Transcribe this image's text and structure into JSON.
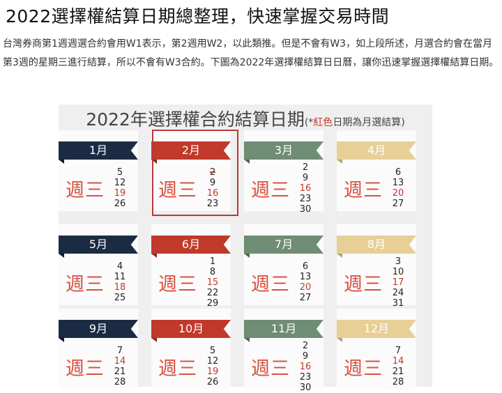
{
  "article": {
    "title": "2022選擇權結算日期總整理，快速掌握交易時間",
    "intro": "台灣券商第1週週選合約會用W1表示，第2週用W2，以此類推。但是不會有W3，如上段所述，月選合約會在當月第3週的星期三進行結算，所以不會有W3合約。下圖為2022年選擇權結算日日曆，讓你迅速掌握選擇權結算日期。"
  },
  "calendar": {
    "title": "2022年選擇權合約結算日期",
    "note_open": "(*",
    "note_red": "紅色",
    "note_rest": "日期為月選結算)",
    "weekday": "週三",
    "colors": {
      "navy": "#1c2b44",
      "red": "#c0392b",
      "green": "#6f8c74",
      "gold": "#e7cf97"
    },
    "months": [
      {
        "name": "1月",
        "color": "navy",
        "dates": [
          "5",
          "12",
          "19",
          "26"
        ],
        "monthly": "19"
      },
      {
        "name": "2月",
        "color": "red",
        "dates": [
          "2",
          "9",
          "16",
          "23"
        ],
        "monthly": "16",
        "struck": "2",
        "highlighted": true
      },
      {
        "name": "3月",
        "color": "green",
        "dates": [
          "2",
          "9",
          "16",
          "23",
          "30"
        ],
        "monthly": "16"
      },
      {
        "name": "4月",
        "color": "gold",
        "dates": [
          "6",
          "13",
          "20",
          "27"
        ],
        "monthly": "20"
      },
      {
        "name": "5月",
        "color": "navy",
        "dates": [
          "4",
          "11",
          "18",
          "25"
        ],
        "monthly": "18"
      },
      {
        "name": "6月",
        "color": "red",
        "dates": [
          "1",
          "8",
          "15",
          "22",
          "29"
        ],
        "monthly": "15"
      },
      {
        "name": "7月",
        "color": "green",
        "dates": [
          "6",
          "13",
          "20",
          "27"
        ],
        "monthly": "20"
      },
      {
        "name": "8月",
        "color": "gold",
        "dates": [
          "3",
          "10",
          "17",
          "24",
          "31"
        ],
        "monthly": "17"
      },
      {
        "name": "9月",
        "color": "navy",
        "dates": [
          "7",
          "14",
          "21",
          "28"
        ],
        "monthly": "14"
      },
      {
        "name": "10月",
        "color": "red",
        "dates": [
          "5",
          "12",
          "19",
          "26"
        ],
        "monthly": "19"
      },
      {
        "name": "11月",
        "color": "green",
        "dates": [
          "2",
          "9",
          "16",
          "23",
          "30"
        ],
        "monthly": "16"
      },
      {
        "name": "12月",
        "color": "gold",
        "dates": [
          "7",
          "14",
          "21",
          "28"
        ],
        "monthly": "14"
      }
    ]
  }
}
